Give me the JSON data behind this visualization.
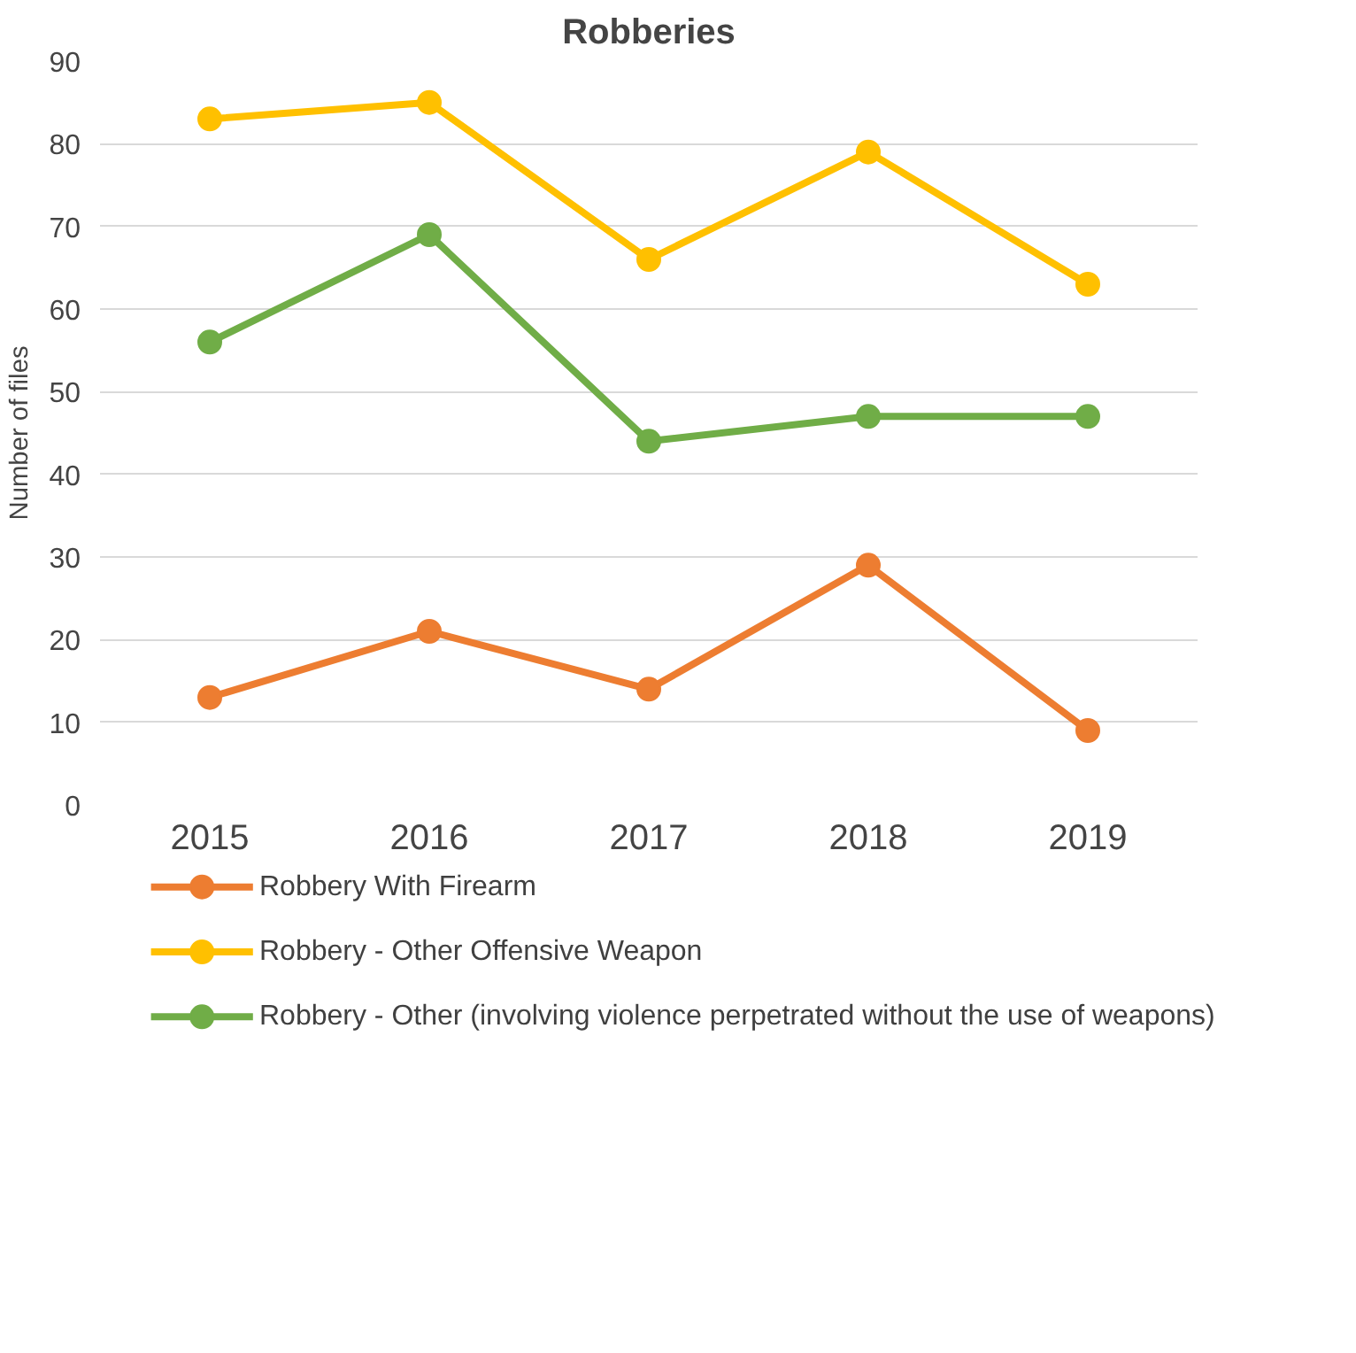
{
  "chart_data": {
    "type": "line",
    "title": "Robberies",
    "ylabel": "Number of files",
    "categories": [
      "2015",
      "2016",
      "2017",
      "2018",
      "2019"
    ],
    "series": [
      {
        "name": "Robbery With Firearm",
        "color": "#ed7d31",
        "values": [
          13,
          21,
          14,
          29,
          9
        ]
      },
      {
        "name": "Robbery - Other Offensive Weapon",
        "color": "#ffc000",
        "values": [
          83,
          85,
          66,
          79,
          63
        ]
      },
      {
        "name": "Robbery - Other (involving violence perpetrated without the use of weapons)",
        "color": "#70ad47",
        "values": [
          56,
          69,
          44,
          47,
          47
        ]
      }
    ],
    "ylim": [
      0,
      90
    ],
    "yticks": [
      0,
      10,
      20,
      30,
      40,
      50,
      60,
      70,
      80,
      90
    ],
    "grid": "y",
    "legend": "bottom",
    "marker": "circle",
    "line_style": "solid"
  }
}
